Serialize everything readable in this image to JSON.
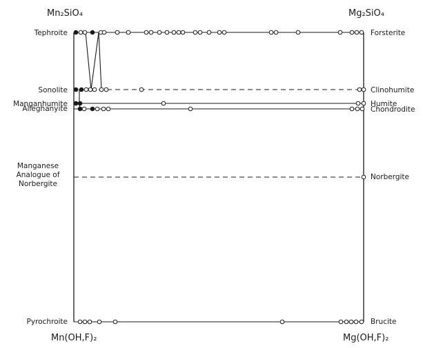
{
  "corners": {
    "top_left": "Mn₂SiO₄",
    "top_right": "Mg₂SiO₄",
    "bottom_left": "Mn(OH,F)₂",
    "bottom_right": "Mg(OH,F)₂"
  },
  "left_labels": {
    "tephroite": "Tephroite",
    "sonolite": "Sonolite",
    "manganhumite": "Manganhumite",
    "alleghanyite": "Alleghanyite",
    "manganese_analogue": "Manganese\nAnalogue of\nNorbergite",
    "pyrochroite": "Pyrochroite"
  },
  "right_labels": {
    "forsterite": "Forsterite",
    "clinohumite": "Clinohumite",
    "humite": "Humite",
    "chondrodite": "Chondrodite",
    "norbergite": "Norbergite",
    "brucite": "Brucite"
  },
  "colors": {
    "ink": "#1a1a1a",
    "background": "#ffffff"
  }
}
